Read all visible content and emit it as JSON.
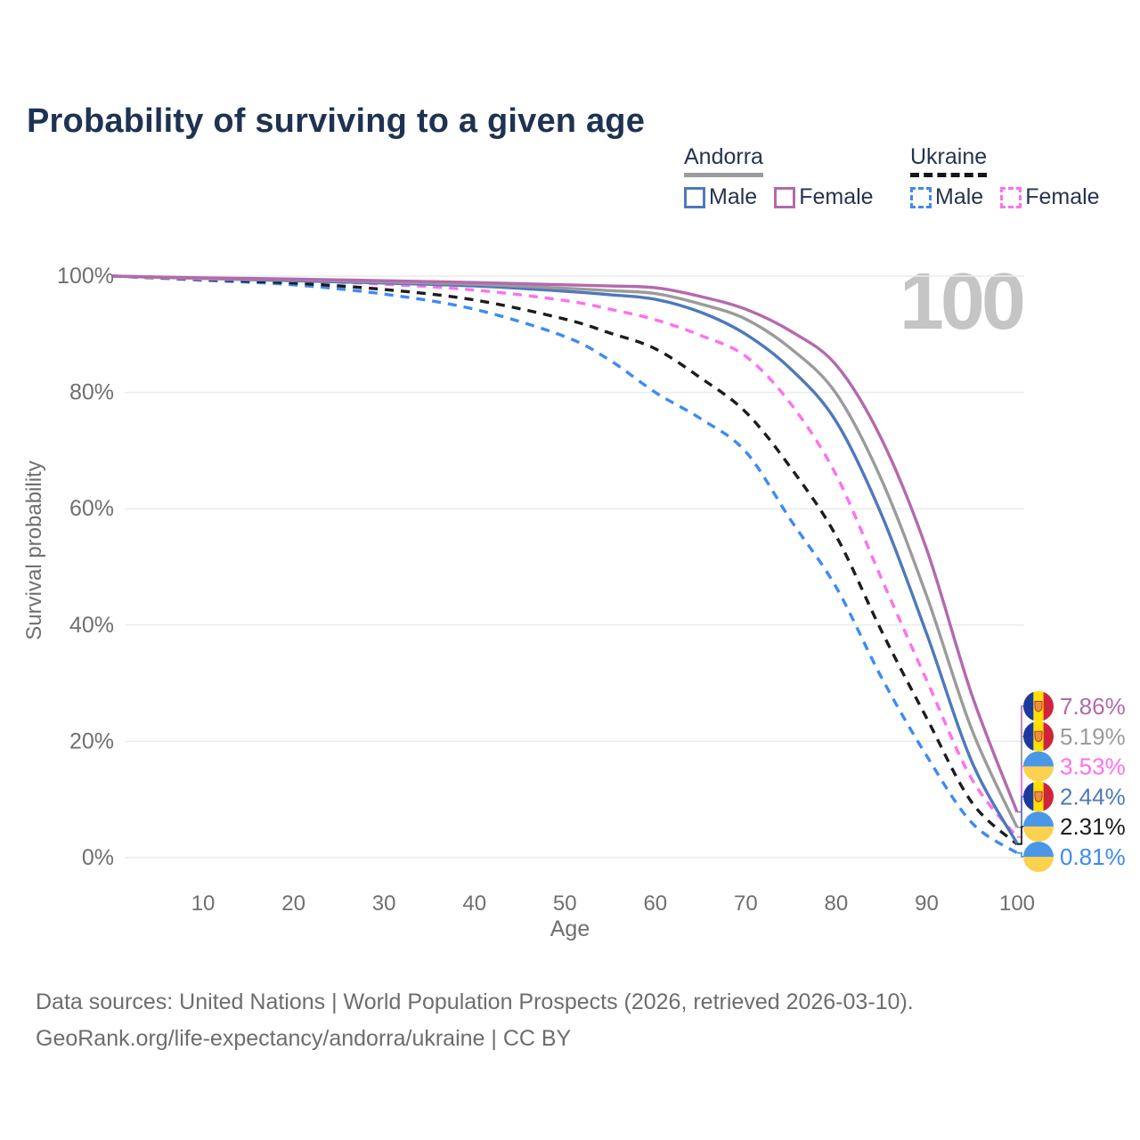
{
  "page": {
    "title": "Probability of surviving to a given age",
    "watermark": "100"
  },
  "legend": {
    "groups": [
      {
        "name": "Andorra",
        "line_style": "solid",
        "underline_color": "#9b9b9b",
        "items": [
          {
            "label": "Male",
            "color": "#4e79bb"
          },
          {
            "label": "Female",
            "color": "#b469ae"
          }
        ]
      },
      {
        "name": "Ukraine",
        "line_style": "dashed",
        "underline_color": "#161616",
        "items": [
          {
            "label": "Male",
            "color": "#3d8af7"
          },
          {
            "label": "Female",
            "color": "#ff70ee"
          }
        ]
      }
    ]
  },
  "footer": {
    "line1": "Data sources: United Nations | World Population Prospects (2026, retrieved 2026-03-10).",
    "line2": "GeoRank.org/life-expectancy/andorra/ukraine | CC BY"
  },
  "chart_data": {
    "type": "line",
    "title": "Probability of surviving to a given age",
    "xlabel": "Age",
    "ylabel": "Survival probability",
    "xlim": [
      0,
      100
    ],
    "ylim": [
      0,
      100
    ],
    "x_ticks": [
      10,
      20,
      30,
      40,
      50,
      60,
      70,
      80,
      90,
      100
    ],
    "y_ticks_percent": [
      0,
      20,
      40,
      60,
      80,
      100
    ],
    "grid": "horizontal",
    "legend_position": "top-right",
    "watermark": "100",
    "flag_colors": {
      "andorra": [
        "#1b3a9b",
        "#fedf00",
        "#d0243c"
      ],
      "ukraine": [
        "#4a97e8",
        "#fbd14d"
      ]
    },
    "ages": [
      0,
      10,
      20,
      30,
      40,
      50,
      55,
      60,
      65,
      70,
      75,
      80,
      85,
      90,
      95,
      100
    ],
    "series": [
      {
        "id": "ukraine-male",
        "country": "Ukraine",
        "group_label": "Male",
        "style": "dashed",
        "color": "#3d8af7",
        "flag": "ukraine",
        "end_label": "0.81%",
        "values": [
          100,
          99.3,
          98.5,
          96.9,
          94.3,
          89.6,
          85.5,
          80.0,
          75.5,
          69.8,
          58.0,
          46.5,
          31.0,
          17.5,
          6.0,
          0.81
        ]
      },
      {
        "id": "ukraine-combined",
        "country": "Ukraine",
        "group_label": "Ukraine",
        "style": "dashed",
        "color": "#1c1c1c",
        "flag": "ukraine",
        "end_label": "2.31%",
        "values": [
          100,
          99.4,
          98.8,
          97.7,
          95.9,
          92.6,
          90.2,
          87.5,
          82.5,
          76.6,
          67.0,
          55.3,
          39.0,
          24.0,
          9.5,
          2.31
        ]
      },
      {
        "id": "ukraine-female",
        "country": "Ukraine",
        "group_label": "Female",
        "style": "dashed",
        "color": "#ff70ee",
        "flag": "ukraine",
        "end_label": "3.53%",
        "values": [
          100,
          99.5,
          99.2,
          98.6,
          97.6,
          95.8,
          94.3,
          92.5,
          89.8,
          86.2,
          78.0,
          65.8,
          48.0,
          30.5,
          13.5,
          3.53
        ]
      },
      {
        "id": "andorra-male",
        "country": "Andorra",
        "group_label": "Male",
        "style": "solid",
        "color": "#4e79bb",
        "flag": "andorra",
        "end_label": "2.44%",
        "values": [
          100,
          99.6,
          99.2,
          98.8,
          98.3,
          97.4,
          96.8,
          96.0,
          93.8,
          90.0,
          84.0,
          75.0,
          59.0,
          38.5,
          16.5,
          2.44
        ]
      },
      {
        "id": "andorra-combined",
        "country": "Andorra",
        "group_label": "Andorra",
        "style": "solid",
        "color": "#9b9b9b",
        "flag": "andorra",
        "end_label": "5.19%",
        "values": [
          100,
          99.6,
          99.4,
          99.0,
          98.6,
          97.9,
          97.5,
          97.0,
          95.2,
          92.6,
          87.5,
          79.8,
          65.0,
          45.0,
          22.0,
          5.19
        ]
      },
      {
        "id": "andorra-female",
        "country": "Andorra",
        "group_label": "Female",
        "style": "solid",
        "color": "#b469ae",
        "flag": "andorra",
        "end_label": "7.86%",
        "values": [
          100,
          99.7,
          99.5,
          99.2,
          98.9,
          98.5,
          98.3,
          98.0,
          96.5,
          94.3,
          90.5,
          84.7,
          72.0,
          53.0,
          28.0,
          7.86
        ]
      }
    ]
  }
}
